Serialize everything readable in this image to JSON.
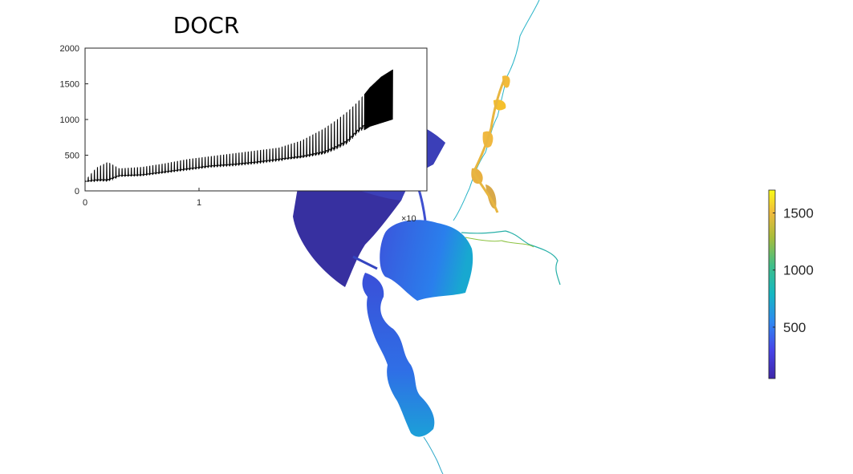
{
  "colors": {
    "timeseries_line": "#000000",
    "axis": "#262626",
    "colormap": [
      "#3e26a8",
      "#4744e8",
      "#2e88f0",
      "#14b8c2",
      "#3fbe88",
      "#a8bd3a",
      "#f0ba3c",
      "#f9fb15"
    ]
  },
  "chart_data": [
    {
      "type": "line",
      "title": "DOCR",
      "xlabel": "",
      "ylabel": "",
      "xlim": [
        0,
        3
      ],
      "ylim": [
        0,
        2000
      ],
      "x_ticks": [
        "0",
        "1"
      ],
      "y_ticks": [
        "0",
        "500",
        "1000",
        "1500",
        "2000"
      ],
      "x_exponent_label": "×10",
      "grid": false,
      "series": [
        {
          "style": "rapidly oscillating (spikes over a rising baseline)",
          "x": [
            0.0,
            0.1,
            0.2,
            0.3,
            0.5,
            0.7,
            0.9,
            1.1,
            1.3,
            1.5,
            1.7,
            1.9,
            2.1,
            2.2,
            2.3,
            2.4,
            2.5,
            2.6,
            2.7
          ],
          "baseline": [
            130,
            130,
            120,
            200,
            210,
            250,
            290,
            330,
            350,
            380,
            420,
            450,
            500,
            560,
            640,
            800,
            900,
            950,
            1000
          ],
          "peak": [
            140,
            320,
            400,
            310,
            330,
            380,
            440,
            480,
            520,
            560,
            600,
            700,
            870,
            980,
            1100,
            1250,
            1450,
            1600,
            1700
          ]
        }
      ]
    },
    {
      "type": "heatmap",
      "description_colorbar_ticks": [
        "500",
        "1000",
        "1500"
      ],
      "clim": [
        50,
        1700
      ]
    }
  ]
}
